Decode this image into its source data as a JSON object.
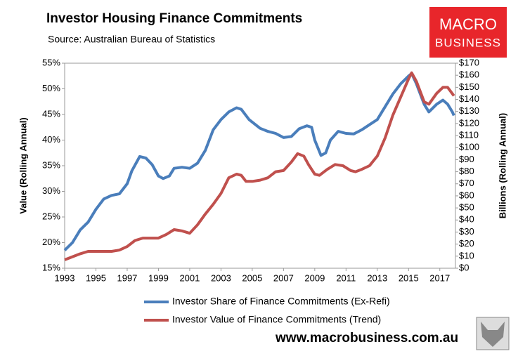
{
  "chart_data": {
    "type": "line",
    "title": "Investor Housing Finance Commitments",
    "subtitle": "Source: Australian Bureau of Statistics",
    "logo": {
      "line1": "MACRO",
      "line2": "BUSINESS"
    },
    "website": "www.macrobusiness.com.au",
    "ylabel": "Value (Rolling Annual)",
    "y2label": "Billions (Rolling Annual)",
    "xlim": [
      1993,
      2018
    ],
    "xticks": [
      1993,
      1995,
      1997,
      1999,
      2001,
      2003,
      2005,
      2007,
      2009,
      2011,
      2013,
      2015,
      2017
    ],
    "ylim": [
      15,
      55
    ],
    "yticks": [
      {
        "value": 15,
        "label": "15%"
      },
      {
        "value": 20,
        "label": "20%"
      },
      {
        "value": 25,
        "label": "25%"
      },
      {
        "value": 30,
        "label": "30%"
      },
      {
        "value": 35,
        "label": "35%"
      },
      {
        "value": 40,
        "label": "40%"
      },
      {
        "value": 45,
        "label": "45%"
      },
      {
        "value": 50,
        "label": "50%"
      },
      {
        "value": 55,
        "label": "55%"
      }
    ],
    "y2lim": [
      0,
      170
    ],
    "y2ticks": [
      {
        "value": 0,
        "label": "$0"
      },
      {
        "value": 10,
        "label": "$10"
      },
      {
        "value": 20,
        "label": "$20"
      },
      {
        "value": 30,
        "label": "$30"
      },
      {
        "value": 40,
        "label": "$40"
      },
      {
        "value": 50,
        "label": "$50"
      },
      {
        "value": 60,
        "label": "$60"
      },
      {
        "value": 70,
        "label": "$70"
      },
      {
        "value": 80,
        "label": "$80"
      },
      {
        "value": 90,
        "label": "$90"
      },
      {
        "value": 100,
        "label": "$100"
      },
      {
        "value": 110,
        "label": "$110"
      },
      {
        "value": 120,
        "label": "$120"
      },
      {
        "value": 130,
        "label": "$130"
      },
      {
        "value": 140,
        "label": "$140"
      },
      {
        "value": 150,
        "label": "$150"
      },
      {
        "value": 160,
        "label": "$160"
      },
      {
        "value": 170,
        "label": "$170"
      }
    ],
    "series": [
      {
        "name": "Investor Share of Finance Commitments (Ex-Refi)",
        "color": "#4a7ebb",
        "x": [
          1993.0,
          1993.5,
          1994,
          1994.5,
          1995,
          1995.5,
          1996,
          1996.5,
          1997,
          1997.3,
          1997.8,
          1998.2,
          1998.6,
          1999,
          1999.3,
          1999.7,
          2000,
          2000.5,
          2001,
          2001.5,
          2002,
          2002.5,
          2003,
          2003.5,
          2004,
          2004.3,
          2004.8,
          2005.5,
          2006,
          2006.5,
          2007,
          2007.5,
          2008,
          2008.5,
          2008.8,
          2009,
          2009.4,
          2009.7,
          2010,
          2010.5,
          2011,
          2011.5,
          2012,
          2012.5,
          2013,
          2013.5,
          2014,
          2014.5,
          2015,
          2015.2,
          2015.5,
          2016,
          2016.3,
          2016.8,
          2017.2,
          2017.5,
          2017.8,
          2017.9
        ],
        "values": [
          18.5,
          20,
          22.5,
          24,
          26.5,
          28.5,
          29.2,
          29.5,
          31.5,
          34,
          36.8,
          36.5,
          35.2,
          33,
          32.5,
          33,
          34.5,
          34.7,
          34.5,
          35.5,
          38,
          42,
          44,
          45.5,
          46.3,
          46,
          44,
          42.3,
          41.7,
          41.3,
          40.5,
          40.7,
          42.2,
          42.8,
          42.5,
          40,
          37,
          37.5,
          40,
          41.7,
          41.3,
          41.2,
          42,
          43,
          44,
          46.5,
          49,
          51,
          52.5,
          53,
          51,
          47,
          45.5,
          47,
          47.8,
          47,
          45.5,
          44.8
        ]
      },
      {
        "name": "Investor Value of Finance Commitments (Trend)",
        "color": "#c0504d",
        "axis": "y2",
        "x": [
          1993,
          1994,
          1994.5,
          1995,
          1996,
          1996.5,
          1997,
          1997.5,
          1998,
          1998.5,
          1999,
          1999.5,
          2000,
          2000.5,
          2001,
          2001.5,
          2002,
          2002.5,
          2003,
          2003.5,
          2004,
          2004.3,
          2004.6,
          2005,
          2005.5,
          2006,
          2006.5,
          2007,
          2007.5,
          2007.9,
          2008.3,
          2008.6,
          2009,
          2009.3,
          2009.8,
          2010.3,
          2010.8,
          2011.3,
          2011.6,
          2012,
          2012.5,
          2013,
          2013.5,
          2014,
          2014.5,
          2015,
          2015.2,
          2015.5,
          2016,
          2016.3,
          2016.8,
          2017.2,
          2017.5,
          2017.9
        ],
        "values": [
          7,
          12,
          14,
          14,
          14,
          15,
          18,
          23,
          25,
          25,
          25,
          28,
          32,
          31,
          29,
          36,
          45,
          53,
          62,
          75,
          78,
          77,
          72,
          72,
          73,
          75,
          80,
          81,
          88,
          95,
          93,
          86,
          78,
          77,
          82,
          86,
          85,
          81,
          80,
          82,
          85,
          93,
          108,
          127,
          142,
          157,
          162,
          155,
          138,
          136,
          145,
          150,
          150,
          143
        ]
      }
    ]
  }
}
